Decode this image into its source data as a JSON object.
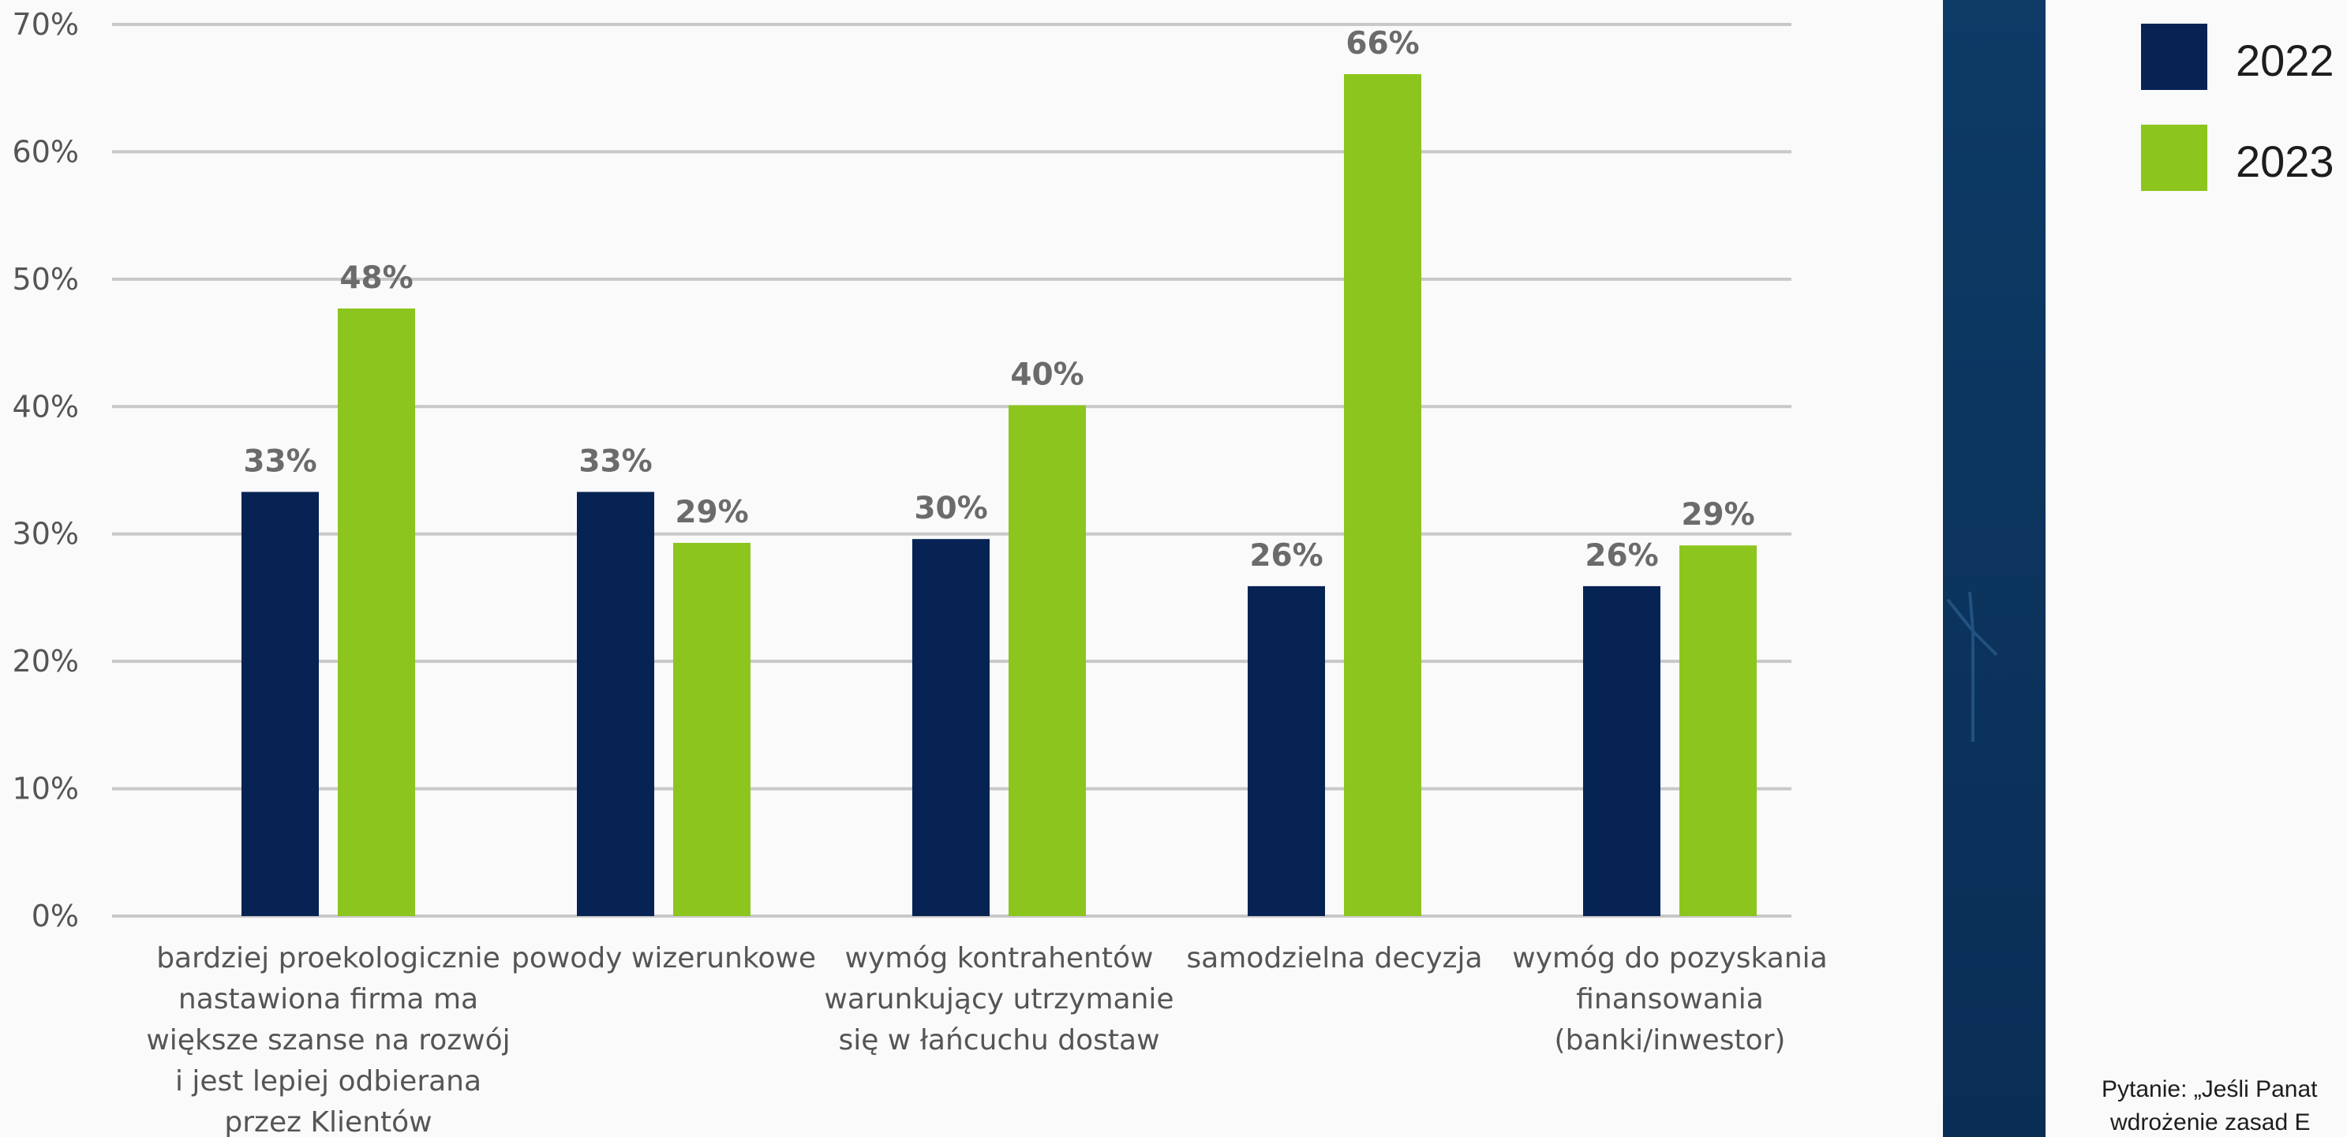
{
  "chart_data": {
    "type": "bar",
    "categories": [
      [
        "bardziej proekologicznie",
        "nastawiona firma ma",
        "większe szanse na rozwój",
        "i jest lepiej odbierana",
        "przez Klientów"
      ],
      [
        "powody wizerunkowe"
      ],
      [
        "wymóg kontrahentów",
        "warunkujący utrzymanie",
        "się w łańcuchu dostaw"
      ],
      [
        "samodzielna decyzja"
      ],
      [
        "wymóg do pozyskania",
        "finansowania",
        "(banki/inwestor)"
      ]
    ],
    "series": [
      {
        "name": "2022",
        "color": "#062354",
        "values": [
          33.3,
          33.3,
          29.6,
          25.9,
          25.9
        ],
        "labels": [
          "33%",
          "33%",
          "30%",
          "26%",
          "26%"
        ]
      },
      {
        "name": "2023",
        "color": "#8cc51d",
        "values": [
          47.7,
          29.3,
          40.1,
          66.1,
          29.1
        ],
        "labels": [
          "48%",
          "29%",
          "40%",
          "66%",
          "29%"
        ]
      }
    ],
    "ylim": [
      0,
      70
    ],
    "yticks": [
      0,
      10,
      20,
      30,
      40,
      50,
      60,
      70
    ],
    "ytick_labels": [
      "0%",
      "10%",
      "20%",
      "30%",
      "40%",
      "50%",
      "60%",
      "70%"
    ],
    "grid": true,
    "legend_position": "top-right",
    "title": "",
    "xlabel": "",
    "ylabel": ""
  },
  "note_lines": [
    "Pytanie: „Jeśli Panat",
    "wdrożenie zasad E"
  ],
  "panel": {
    "color_top": "#0d3b66",
    "color_bottom": "#0a2d55"
  }
}
